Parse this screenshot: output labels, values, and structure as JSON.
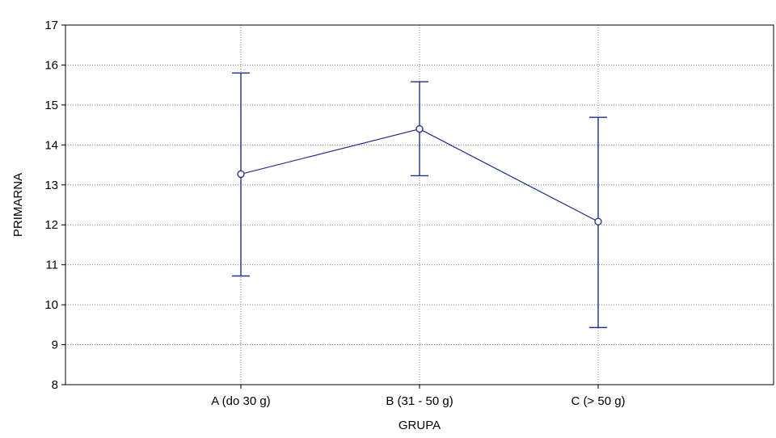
{
  "chart_data": {
    "type": "line",
    "categories": [
      "A (do 30 g)",
      "B (31 - 50 g)",
      "C (> 50 g)"
    ],
    "series": [
      {
        "values": [
          13.27,
          14.4,
          12.08
        ],
        "lower": [
          10.72,
          13.23,
          9.43
        ],
        "upper": [
          15.8,
          15.58,
          14.69
        ]
      }
    ],
    "xlabel": "GRUPA",
    "ylabel": "PRIMARNA",
    "ylim": [
      8,
      17
    ],
    "yticks": [
      8,
      9,
      10,
      11,
      12,
      13,
      14,
      15,
      16,
      17
    ],
    "grid": true,
    "colors": {
      "series": "#1f2f8f",
      "grid": "#808080"
    }
  }
}
